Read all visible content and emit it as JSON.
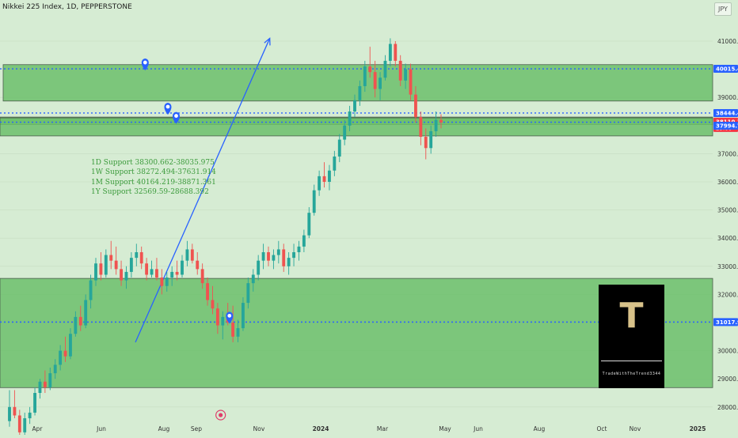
{
  "header": {
    "title": "Nikkei 225 Index, 1D, PEPPERSTONE",
    "currency": "JPY"
  },
  "colors": {
    "background": "#d6ecd3",
    "zone_fill": "#6cc06b",
    "up_candle": "#26a69a",
    "down_candle": "#ef5350",
    "trendline": "#2962ff",
    "dotted_level": "#2962ff",
    "price_label_red": "#f23645",
    "price_label_blue": "#2962ff"
  },
  "support_lines": [
    "1D Support 38300.662-38035.975",
    "1W Support 38272.494-37631.914",
    "1M Support 40164.219-38871.361",
    "1Y Support 32569.59-28688.392"
  ],
  "logo": {
    "letter": "T",
    "caption": "TradeWithTheTrend3344"
  },
  "chart_data": {
    "type": "candlestick",
    "title": "Nikkei 225 Index, 1D, PEPPERSTONE",
    "ylabel": "JPY",
    "ylim": [
      27800,
      41800
    ],
    "y_ticks": [
      28000.0,
      29000.0,
      30000.0,
      31000.0,
      32000.0,
      33000.0,
      34000.0,
      35000.0,
      36000.0,
      37000.0,
      39000.0,
      41000.0
    ],
    "x_tick_labels": [
      "Apr",
      "Jun",
      "Aug",
      "Sep",
      "Nov",
      "2024",
      "Mar",
      "May",
      "Jun",
      "Aug",
      "Oct",
      "Nov",
      "2025"
    ],
    "price_labels": [
      {
        "value": 40015.4,
        "text": "40015.4",
        "style": "blue"
      },
      {
        "value": 38444.4,
        "text": "38444.4",
        "style": "blue"
      },
      {
        "value": 38118.9,
        "text": "38118.9",
        "style": "blue"
      },
      {
        "value": 38110.7,
        "text": "38110.7",
        "style": "red"
      },
      {
        "value": 37994.7,
        "text": "37994.7",
        "style": "blue"
      },
      {
        "value": 31017.9,
        "text": "31017.9",
        "style": "blue"
      }
    ],
    "countdown_label": "25:00",
    "zones": [
      {
        "top": 40164.2,
        "bottom": 38871.4
      },
      {
        "top": 38300.7,
        "bottom": 38035.9
      },
      {
        "top": 38272.5,
        "bottom": 37631.9
      },
      {
        "top": 32569.6,
        "bottom": 28688.4
      }
    ],
    "dotted_levels": [
      40015.4,
      38444.4,
      38118.9,
      31017.9
    ],
    "trendline": {
      "from": [
        "2023-10-30",
        30300
      ],
      "to": [
        "2024-08-15",
        41100
      ]
    },
    "markers": [
      "2023-11-20",
      "2024-01-08",
      "2024-01-26",
      "2024-05-20"
    ],
    "candles": [
      [
        27500,
        28600,
        27300,
        28000
      ],
      [
        28000,
        28600,
        27600,
        27700
      ],
      [
        27700,
        27900,
        27000,
        27100
      ],
      [
        27100,
        27800,
        26900,
        27600
      ],
      [
        27600,
        28000,
        27400,
        27800
      ],
      [
        27800,
        28700,
        27700,
        28500
      ],
      [
        28500,
        29000,
        28300,
        28900
      ],
      [
        28900,
        29300,
        28500,
        28700
      ],
      [
        28700,
        29400,
        28600,
        29200
      ],
      [
        29200,
        29700,
        29000,
        29500
      ],
      [
        29500,
        30200,
        29300,
        30000
      ],
      [
        30000,
        30500,
        29600,
        29800
      ],
      [
        29800,
        30800,
        29700,
        30600
      ],
      [
        30600,
        31400,
        30500,
        31200
      ],
      [
        31200,
        31600,
        30700,
        30900
      ],
      [
        30900,
        32000,
        30800,
        31800
      ],
      [
        31800,
        32700,
        31500,
        32500
      ],
      [
        32500,
        33300,
        32300,
        33100
      ],
      [
        33100,
        33500,
        32500,
        32700
      ],
      [
        32700,
        33600,
        32600,
        33400
      ],
      [
        33400,
        33900,
        32900,
        33200
      ],
      [
        33200,
        33700,
        32700,
        32900
      ],
      [
        32900,
        33200,
        32300,
        32500
      ],
      [
        32500,
        33000,
        32200,
        32800
      ],
      [
        32800,
        33500,
        32600,
        33300
      ],
      [
        33300,
        33800,
        33000,
        33500
      ],
      [
        33500,
        33700,
        32900,
        33100
      ],
      [
        33100,
        33300,
        32500,
        32700
      ],
      [
        32700,
        33200,
        32600,
        32900
      ],
      [
        32900,
        33300,
        32500,
        32600
      ],
      [
        32600,
        32900,
        32000,
        32300
      ],
      [
        32300,
        32800,
        32100,
        32600
      ],
      [
        32600,
        33000,
        32300,
        32800
      ],
      [
        32800,
        33200,
        32500,
        32700
      ],
      [
        32700,
        33400,
        32600,
        33200
      ],
      [
        33200,
        33900,
        33000,
        33600
      ],
      [
        33600,
        33800,
        33100,
        33200
      ],
      [
        33200,
        33500,
        32700,
        32900
      ],
      [
        32900,
        33100,
        32200,
        32400
      ],
      [
        32400,
        32600,
        31600,
        31800
      ],
      [
        31800,
        32300,
        31300,
        31500
      ],
      [
        31500,
        31700,
        30600,
        30900
      ],
      [
        30900,
        31400,
        30400,
        31200
      ],
      [
        31200,
        31700,
        30900,
        31000
      ],
      [
        31000,
        31600,
        30300,
        30500
      ],
      [
        30500,
        31100,
        30300,
        30800
      ],
      [
        30800,
        31900,
        30700,
        31700
      ],
      [
        31700,
        32600,
        31500,
        32400
      ],
      [
        32400,
        32900,
        32100,
        32700
      ],
      [
        32700,
        33400,
        32500,
        33200
      ],
      [
        33200,
        33800,
        32900,
        33500
      ],
      [
        33500,
        33700,
        33000,
        33200
      ],
      [
        33200,
        33600,
        32900,
        33400
      ],
      [
        33400,
        33900,
        33100,
        33600
      ],
      [
        33600,
        33800,
        32800,
        33000
      ],
      [
        33000,
        33500,
        32700,
        33300
      ],
      [
        33300,
        33800,
        33000,
        33500
      ],
      [
        33500,
        33900,
        33200,
        33700
      ],
      [
        33700,
        34300,
        33500,
        34100
      ],
      [
        34100,
        35100,
        34000,
        34900
      ],
      [
        34900,
        35900,
        34800,
        35700
      ],
      [
        35700,
        36400,
        35500,
        36200
      ],
      [
        36200,
        36700,
        35800,
        36000
      ],
      [
        36000,
        36600,
        35700,
        36400
      ],
      [
        36400,
        37100,
        36200,
        36900
      ],
      [
        36900,
        37700,
        36700,
        37500
      ],
      [
        37500,
        38200,
        37300,
        38000
      ],
      [
        38000,
        38700,
        37800,
        38500
      ],
      [
        38500,
        39100,
        38300,
        38900
      ],
      [
        38900,
        39600,
        38700,
        39400
      ],
      [
        39400,
        40300,
        39200,
        40100
      ],
      [
        40100,
        40800,
        39700,
        39900
      ],
      [
        39900,
        40300,
        39000,
        39300
      ],
      [
        39300,
        39900,
        38900,
        39700
      ],
      [
        39700,
        40500,
        39600,
        40300
      ],
      [
        40300,
        41100,
        40100,
        40900
      ],
      [
        40900,
        41000,
        40100,
        40300
      ],
      [
        40300,
        40500,
        39400,
        39600
      ],
      [
        39600,
        40200,
        39300,
        40000
      ],
      [
        40000,
        40200,
        38900,
        39100
      ],
      [
        39100,
        39400,
        38100,
        38300
      ],
      [
        38300,
        38500,
        37300,
        37600
      ],
      [
        37600,
        37900,
        36800,
        37200
      ],
      [
        37200,
        38000,
        37000,
        37800
      ],
      [
        37800,
        38500,
        37600,
        38200
      ],
      [
        38200,
        38400,
        37900,
        38110.7
      ]
    ]
  }
}
